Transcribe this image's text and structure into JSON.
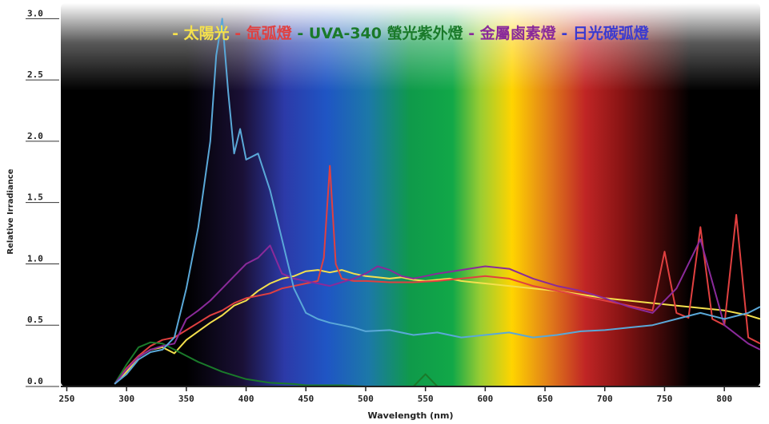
{
  "chart_data": {
    "type": "line",
    "title": "",
    "xlabel": "Wavelength (nm)",
    "ylabel": "Relative Irradiance",
    "xlim": [
      245,
      830
    ],
    "ylim": [
      0,
      3.1
    ],
    "x_ticks": [
      250,
      300,
      350,
      400,
      450,
      500,
      550,
      600,
      650,
      700,
      750,
      800
    ],
    "y_ticks": [
      "0.0",
      "0.5",
      "1.0",
      "1.5",
      "2.0",
      "2.5",
      "3.0"
    ],
    "y_tick_values": [
      0,
      0.5,
      1.0,
      1.5,
      2.0,
      2.5,
      3.0
    ],
    "legend_position": "top",
    "series": [
      {
        "name": "- 太陽光",
        "color": "#f4e04d",
        "x": [
          290,
          300,
          310,
          320,
          330,
          340,
          350,
          360,
          370,
          380,
          390,
          400,
          410,
          420,
          430,
          440,
          450,
          460,
          470,
          480,
          490,
          500,
          510,
          520,
          530,
          540,
          550,
          560,
          570,
          580,
          590,
          600,
          620,
          640,
          660,
          680,
          700,
          720,
          740,
          760,
          780,
          800,
          820,
          830
        ],
        "y": [
          0.02,
          0.12,
          0.24,
          0.3,
          0.32,
          0.27,
          0.38,
          0.45,
          0.52,
          0.58,
          0.66,
          0.7,
          0.78,
          0.84,
          0.88,
          0.9,
          0.94,
          0.95,
          0.93,
          0.95,
          0.92,
          0.9,
          0.89,
          0.88,
          0.89,
          0.87,
          0.86,
          0.87,
          0.88,
          0.86,
          0.85,
          0.84,
          0.82,
          0.8,
          0.78,
          0.75,
          0.72,
          0.7,
          0.68,
          0.66,
          0.64,
          0.62,
          0.58,
          0.55
        ]
      },
      {
        "name": "- 氙弧燈",
        "color": "#e04040",
        "x": [
          290,
          300,
          310,
          320,
          330,
          340,
          350,
          360,
          370,
          380,
          390,
          400,
          410,
          420,
          430,
          440,
          450,
          460,
          465,
          470,
          475,
          480,
          490,
          500,
          520,
          540,
          560,
          580,
          600,
          620,
          640,
          660,
          680,
          700,
          720,
          740,
          750,
          760,
          770,
          780,
          790,
          800,
          810,
          820,
          830
        ],
        "y": [
          0.02,
          0.15,
          0.25,
          0.33,
          0.38,
          0.4,
          0.46,
          0.52,
          0.58,
          0.62,
          0.68,
          0.72,
          0.74,
          0.76,
          0.8,
          0.82,
          0.84,
          0.86,
          1.05,
          1.8,
          1.0,
          0.88,
          0.86,
          0.86,
          0.85,
          0.85,
          0.86,
          0.88,
          0.9,
          0.88,
          0.82,
          0.78,
          0.74,
          0.7,
          0.66,
          0.62,
          1.1,
          0.6,
          0.56,
          1.3,
          0.55,
          0.5,
          1.4,
          0.4,
          0.35
        ]
      },
      {
        "name": "- UVA-340 螢光紫外燈",
        "color": "#1a7a2a",
        "x": [
          290,
          300,
          310,
          320,
          330,
          340,
          350,
          360,
          370,
          380,
          390,
          400,
          420,
          440,
          450,
          460,
          480,
          500,
          540,
          550,
          560,
          600,
          830
        ],
        "y": [
          0.02,
          0.18,
          0.32,
          0.36,
          0.35,
          0.3,
          0.25,
          0.2,
          0.16,
          0.12,
          0.09,
          0.06,
          0.03,
          0.02,
          0.01,
          0.01,
          0.01,
          0.0,
          0.0,
          0.1,
          0.0,
          0.0,
          0.0
        ]
      },
      {
        "name": "- 金屬鹵素燈",
        "color": "#8a2a9a",
        "x": [
          290,
          300,
          310,
          320,
          330,
          340,
          350,
          360,
          370,
          380,
          390,
          400,
          410,
          420,
          430,
          440,
          450,
          460,
          470,
          480,
          490,
          500,
          510,
          520,
          530,
          540,
          560,
          580,
          600,
          620,
          640,
          660,
          680,
          700,
          720,
          740,
          760,
          780,
          800,
          820,
          830
        ],
        "y": [
          0.02,
          0.14,
          0.24,
          0.3,
          0.33,
          0.35,
          0.55,
          0.62,
          0.7,
          0.8,
          0.9,
          1.0,
          1.05,
          1.15,
          0.92,
          0.88,
          0.86,
          0.84,
          0.82,
          0.85,
          0.88,
          0.92,
          0.98,
          0.95,
          0.9,
          0.88,
          0.92,
          0.95,
          0.98,
          0.96,
          0.88,
          0.82,
          0.78,
          0.72,
          0.65,
          0.6,
          0.8,
          1.2,
          0.5,
          0.35,
          0.3
        ]
      },
      {
        "name": "- 日光碳弧燈",
        "color": "#5aa8d8",
        "x": [
          290,
          300,
          310,
          320,
          330,
          340,
          350,
          360,
          370,
          375,
          380,
          385,
          390,
          395,
          400,
          410,
          420,
          430,
          440,
          450,
          460,
          470,
          480,
          490,
          500,
          520,
          540,
          560,
          580,
          600,
          620,
          640,
          660,
          680,
          700,
          720,
          740,
          760,
          780,
          800,
          820,
          830
        ],
        "y": [
          0.02,
          0.1,
          0.22,
          0.28,
          0.3,
          0.4,
          0.8,
          1.3,
          2.0,
          2.7,
          3.0,
          2.4,
          1.9,
          2.1,
          1.85,
          1.9,
          1.6,
          1.2,
          0.8,
          0.6,
          0.55,
          0.52,
          0.5,
          0.48,
          0.45,
          0.46,
          0.42,
          0.44,
          0.4,
          0.42,
          0.44,
          0.4,
          0.42,
          0.45,
          0.46,
          0.48,
          0.5,
          0.55,
          0.6,
          0.55,
          0.6,
          0.65
        ]
      }
    ]
  }
}
